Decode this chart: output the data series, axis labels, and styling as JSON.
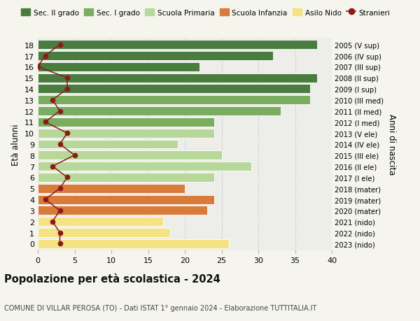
{
  "ages": [
    18,
    17,
    16,
    15,
    14,
    13,
    12,
    11,
    10,
    9,
    8,
    7,
    6,
    5,
    4,
    3,
    2,
    1,
    0
  ],
  "right_labels": [
    "2005 (V sup)",
    "2006 (IV sup)",
    "2007 (III sup)",
    "2008 (II sup)",
    "2009 (I sup)",
    "2010 (III med)",
    "2011 (II med)",
    "2012 (I med)",
    "2013 (V ele)",
    "2014 (IV ele)",
    "2015 (III ele)",
    "2016 (II ele)",
    "2017 (I ele)",
    "2018 (mater)",
    "2019 (mater)",
    "2020 (mater)",
    "2021 (nido)",
    "2022 (nido)",
    "2023 (nido)"
  ],
  "bar_values": [
    38,
    32,
    22,
    38,
    37,
    37,
    33,
    24,
    24,
    19,
    25,
    29,
    24,
    20,
    24,
    23,
    17,
    18,
    26
  ],
  "bar_colors": [
    "#4a7c3f",
    "#4a7c3f",
    "#4a7c3f",
    "#4a7c3f",
    "#4a7c3f",
    "#7aad60",
    "#7aad60",
    "#7aad60",
    "#b8d89a",
    "#b8d89a",
    "#b8d89a",
    "#b8d89a",
    "#b8d89a",
    "#d97b3a",
    "#d97b3a",
    "#d97b3a",
    "#f5e282",
    "#f5e282",
    "#f5e282"
  ],
  "stranieri_values": [
    3,
    1,
    0,
    4,
    4,
    2,
    3,
    1,
    4,
    3,
    5,
    2,
    4,
    3,
    1,
    3,
    2,
    3,
    3
  ],
  "stranieri_color": "#8b1a1a",
  "legend_items": [
    {
      "label": "Sec. II grado",
      "color": "#4a7c3f",
      "type": "patch"
    },
    {
      "label": "Sec. I grado",
      "color": "#7aad60",
      "type": "patch"
    },
    {
      "label": "Scuola Primaria",
      "color": "#b8d89a",
      "type": "patch"
    },
    {
      "label": "Scuola Infanzia",
      "color": "#d97b3a",
      "type": "patch"
    },
    {
      "label": "Asilo Nido",
      "color": "#f5e282",
      "type": "patch"
    },
    {
      "label": "Stranieri",
      "color": "#8b1a1a",
      "type": "line"
    }
  ],
  "xlim": [
    0,
    40
  ],
  "xticks": [
    0,
    5,
    10,
    15,
    20,
    25,
    30,
    35,
    40
  ],
  "ylabel": "Età alunni",
  "right_ylabel": "Anni di nascita",
  "title": "Popolazione per età scolastica - 2024",
  "subtitle": "COMUNE DI VILLAR PEROSA (TO) - Dati ISTAT 1° gennaio 2024 - Elaborazione TUTTITALIA.IT",
  "fig_bg": "#f5f5ee",
  "plot_bg": "#ededea"
}
